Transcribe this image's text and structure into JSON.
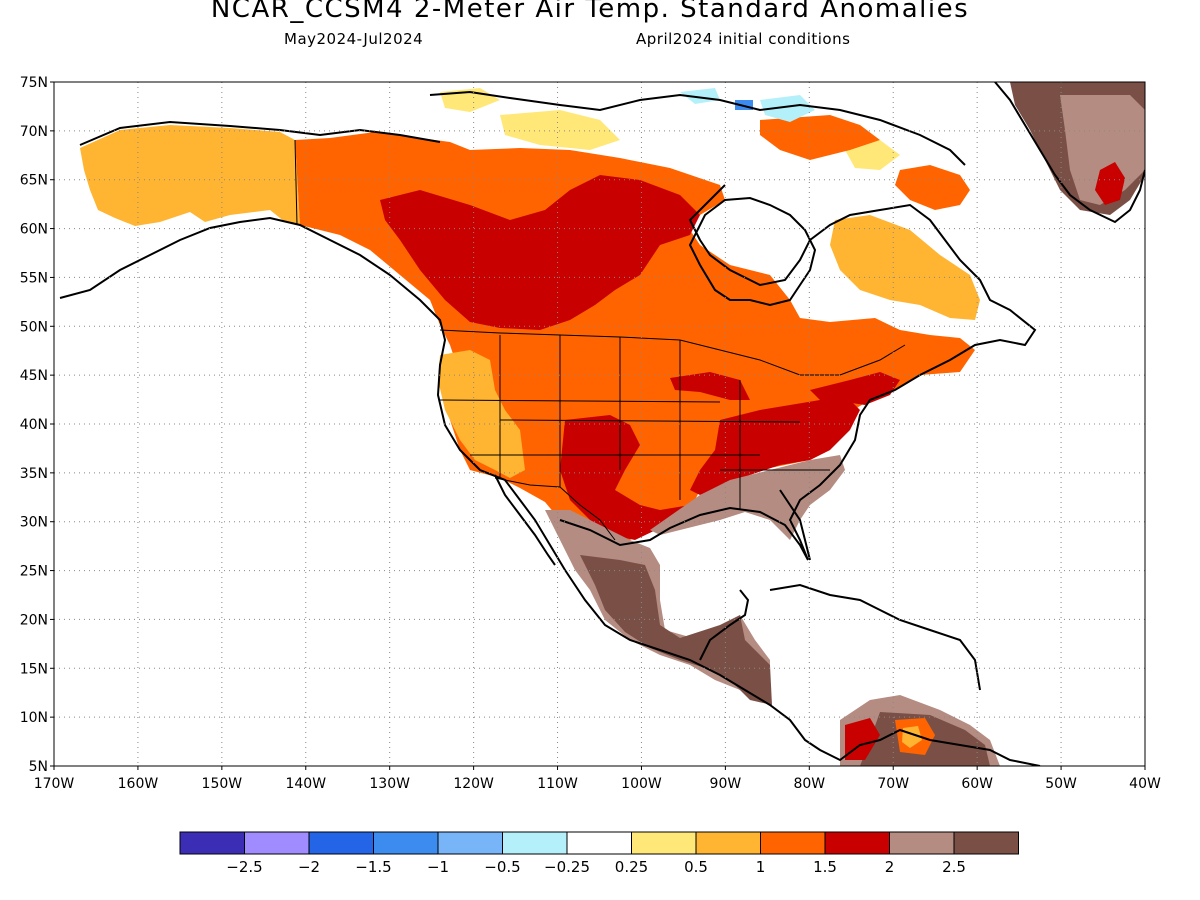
{
  "header": {
    "title": "NCAR_CCSM4 2-Meter Air Temp. Standard Anomalies",
    "period": "May2024-Jul2024",
    "init": "April2024 initial conditions"
  },
  "map": {
    "projection": "cylindrical",
    "lon_range": [
      -170,
      -40
    ],
    "lat_range": [
      5,
      75
    ],
    "lat_ticks": [
      "75N",
      "70N",
      "65N",
      "60N",
      "55N",
      "50N",
      "45N",
      "40N",
      "35N",
      "30N",
      "25N",
      "20N",
      "15N",
      "10N",
      "5N"
    ],
    "lon_ticks": [
      "170W",
      "160W",
      "150W",
      "140W",
      "130W",
      "120W",
      "110W",
      "100W",
      "90W",
      "80W",
      "70W",
      "60W",
      "50W",
      "40W"
    ],
    "grid": "dotted"
  },
  "colorbar": {
    "labels": [
      "-2.5",
      "-2",
      "-1.5",
      "-1",
      "-0.5",
      "-0.25",
      "0.25",
      "0.5",
      "1",
      "1.5",
      "2",
      "2.5"
    ],
    "colors": [
      "#3c2eb4",
      "#a08cff",
      "#2464e6",
      "#3c8cf0",
      "#78b4f8",
      "#b4f0fa",
      "#ffffff",
      "#ffe878",
      "#ffb432",
      "#ff6400",
      "#c80000",
      "#b48c82",
      "#7a5046"
    ]
  }
}
